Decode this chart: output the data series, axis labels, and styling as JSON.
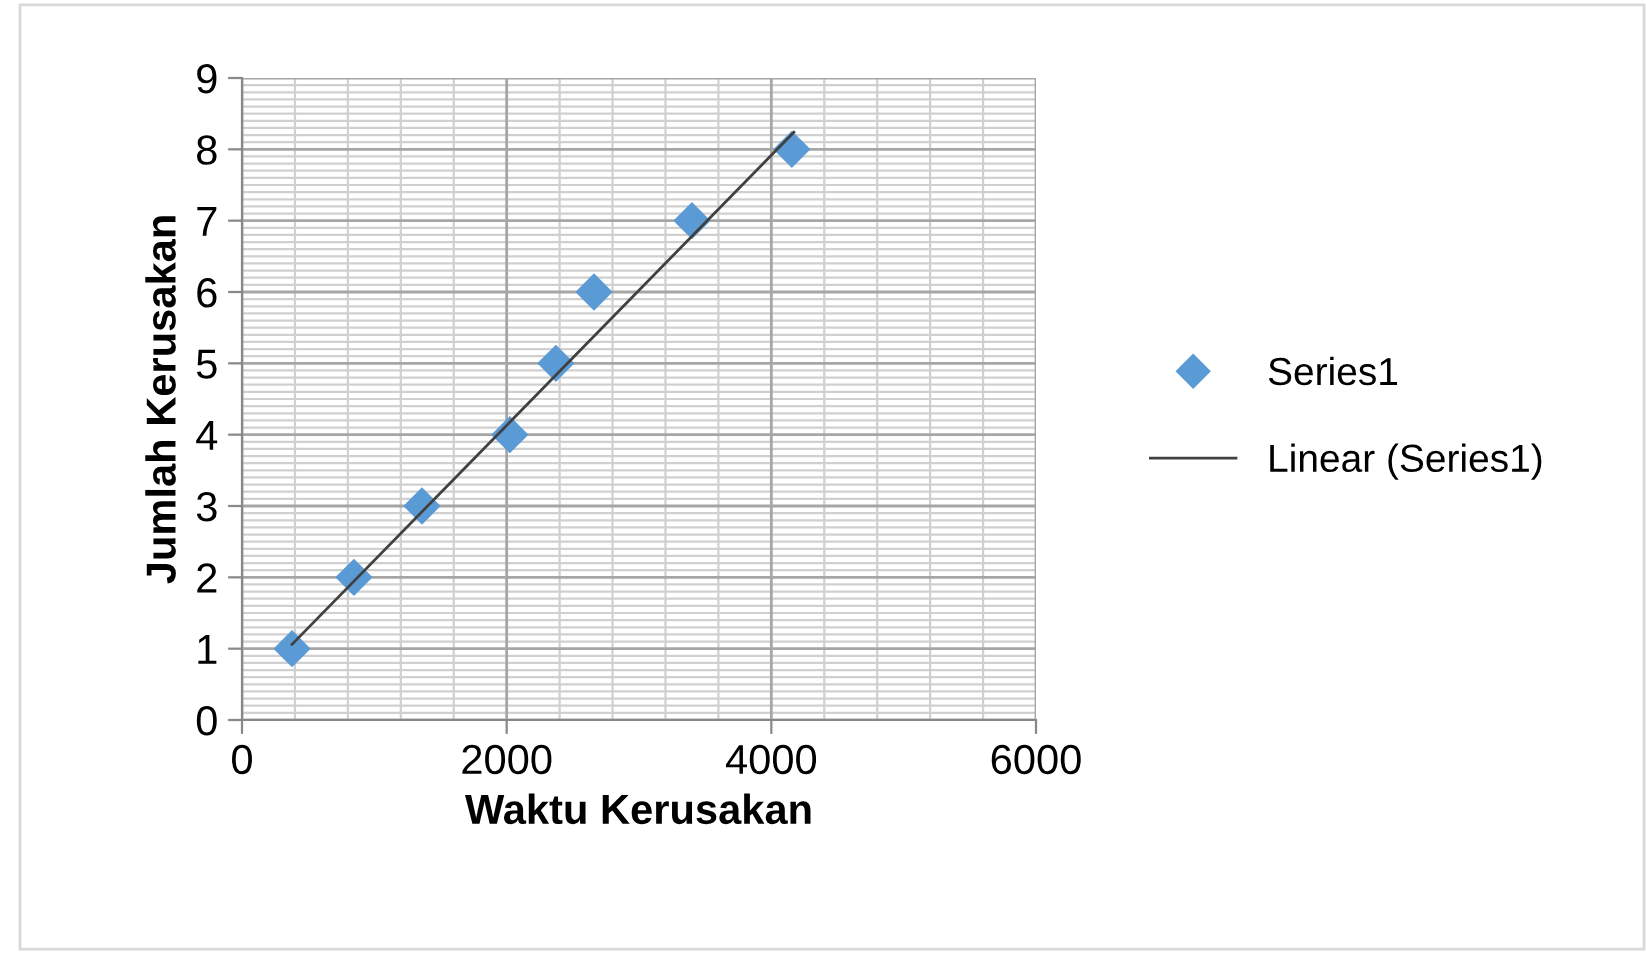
{
  "chart_data": {
    "type": "scatter",
    "xlabel": "Waktu Kerusakan",
    "ylabel": "Jumlah Kerusakan",
    "xlim": [
      0,
      6000
    ],
    "xticks": [
      0,
      2000,
      4000,
      6000
    ],
    "ylim": [
      0,
      9
    ],
    "yticks": [
      0,
      1,
      2,
      3,
      4,
      5,
      6,
      7,
      8,
      9
    ],
    "grid": true,
    "legend": "right",
    "marker": "diamond",
    "series": [
      {
        "name": "Series1",
        "color": "#5b9bd5",
        "x": [
          378,
          846,
          1360,
          2024,
          2372,
          2660,
          3400,
          4155
        ],
        "values": [
          1,
          2,
          3,
          4,
          5,
          6,
          7,
          8
        ]
      },
      {
        "name": "Linear (Series1)",
        "type": "line",
        "color": "#404040",
        "line_style": "solid",
        "marker": "none",
        "x": [
          378,
          4170
        ],
        "values": [
          1.06,
          8.24
        ]
      }
    ]
  }
}
